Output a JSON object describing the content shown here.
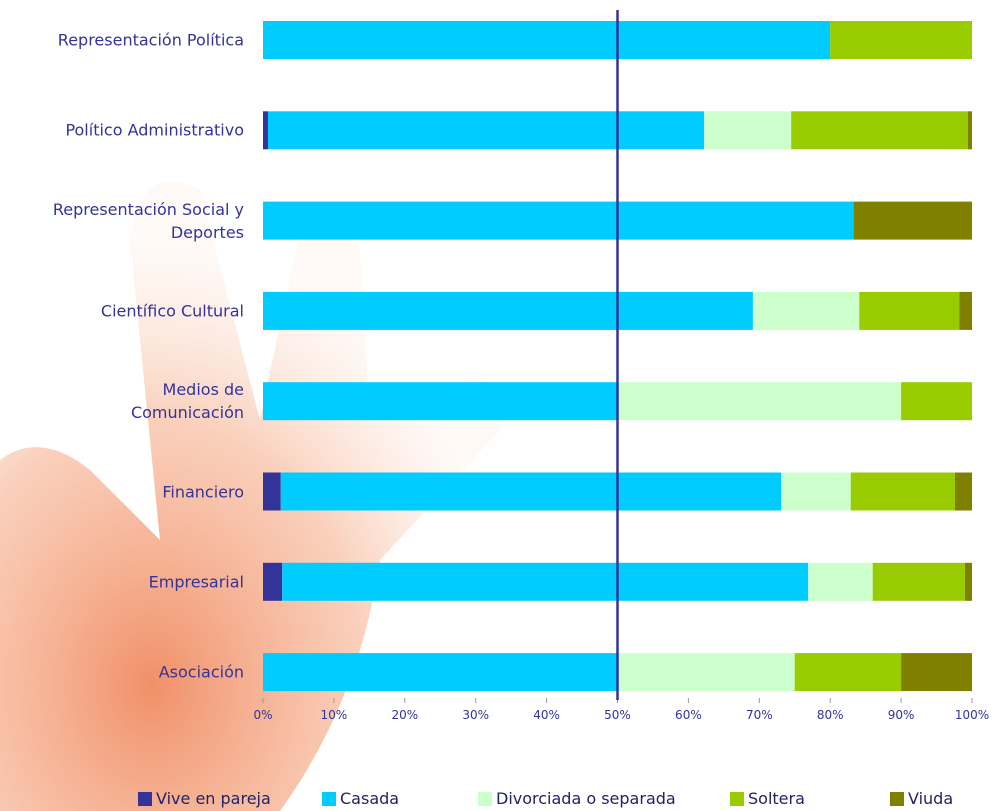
{
  "chart_data": {
    "type": "stacked_barh",
    "categories": [
      "Representación Política",
      "Político Administrativo",
      "Representación Social y\nDeportes",
      "Científico Cultural",
      "Medios de\nComunicación",
      "Financiero",
      "Empresarial",
      "Asociación"
    ],
    "series": [
      {
        "name": "Vive en pareja",
        "color": "#333399",
        "values": [
          0,
          0.7,
          0,
          0,
          0,
          2.5,
          2.7,
          0
        ]
      },
      {
        "name": "Casada",
        "color": "#00ccff",
        "values": [
          80,
          61.5,
          83.3,
          69.1,
          50,
          70.6,
          74.2,
          50
        ]
      },
      {
        "name": "Divorciada o separada",
        "color": "#ccffcc",
        "values": [
          0,
          12.3,
          0,
          15,
          40,
          9.8,
          9.1,
          25
        ]
      },
      {
        "name": "Soltera",
        "color": "#99cc00",
        "values": [
          20,
          24.9,
          0,
          14.1,
          10,
          14.7,
          13,
          15
        ]
      },
      {
        "name": "Viuda",
        "color": "#808000",
        "values": [
          0,
          0.6,
          16.7,
          1.8,
          0,
          2.4,
          1,
          10
        ]
      }
    ],
    "xlim": [
      0,
      100
    ],
    "xticks": [
      {
        "value": 0,
        "label": "0%"
      },
      {
        "value": 10,
        "label": "10%"
      },
      {
        "value": 20,
        "label": "20%"
      },
      {
        "value": 30,
        "label": "30%"
      },
      {
        "value": 40,
        "label": "40%"
      },
      {
        "value": 50,
        "label": "50%"
      },
      {
        "value": 60,
        "label": "60%"
      },
      {
        "value": 70,
        "label": "70%"
      },
      {
        "value": 80,
        "label": "80%"
      },
      {
        "value": 90,
        "label": "90%"
      },
      {
        "value": 100,
        "label": "100%"
      }
    ],
    "reference_line": 50,
    "reference_color": "#333399"
  }
}
